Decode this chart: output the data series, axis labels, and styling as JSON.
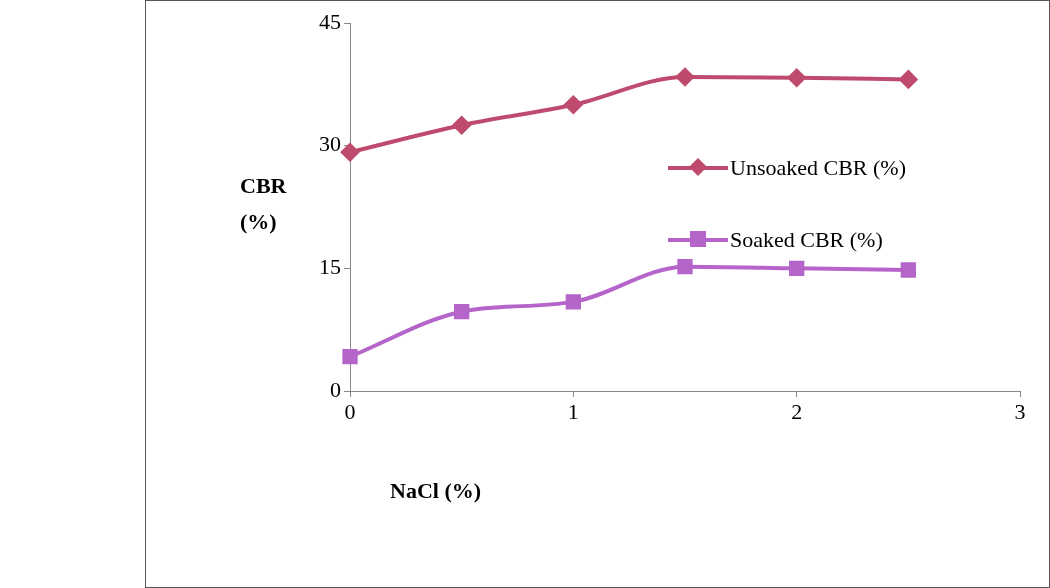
{
  "chart_data": {
    "type": "line",
    "xlabel": "NaCl (%)",
    "ylabel": "CBR (%)",
    "x": [
      0,
      0.5,
      1,
      1.5,
      2,
      2.5
    ],
    "series": [
      {
        "name": "Unsoaked CBR (%)",
        "color": "#be4b6e",
        "marker": "diamond",
        "values": [
          29.2,
          32.5,
          35,
          38.4,
          38.3,
          38.1
        ]
      },
      {
        "name": "Soaked CBR (%)",
        "color": "#b565c9",
        "marker": "square",
        "values": [
          4.2,
          9.7,
          10.9,
          15.2,
          15,
          14.8
        ]
      }
    ],
    "xlim": [
      0,
      3
    ],
    "xticks": [
      0,
      1,
      2,
      3
    ],
    "ylim": [
      0,
      45
    ],
    "yticks": [
      0,
      15,
      30,
      45
    ],
    "grid": false,
    "legend": "right",
    "line_style": "solid"
  }
}
